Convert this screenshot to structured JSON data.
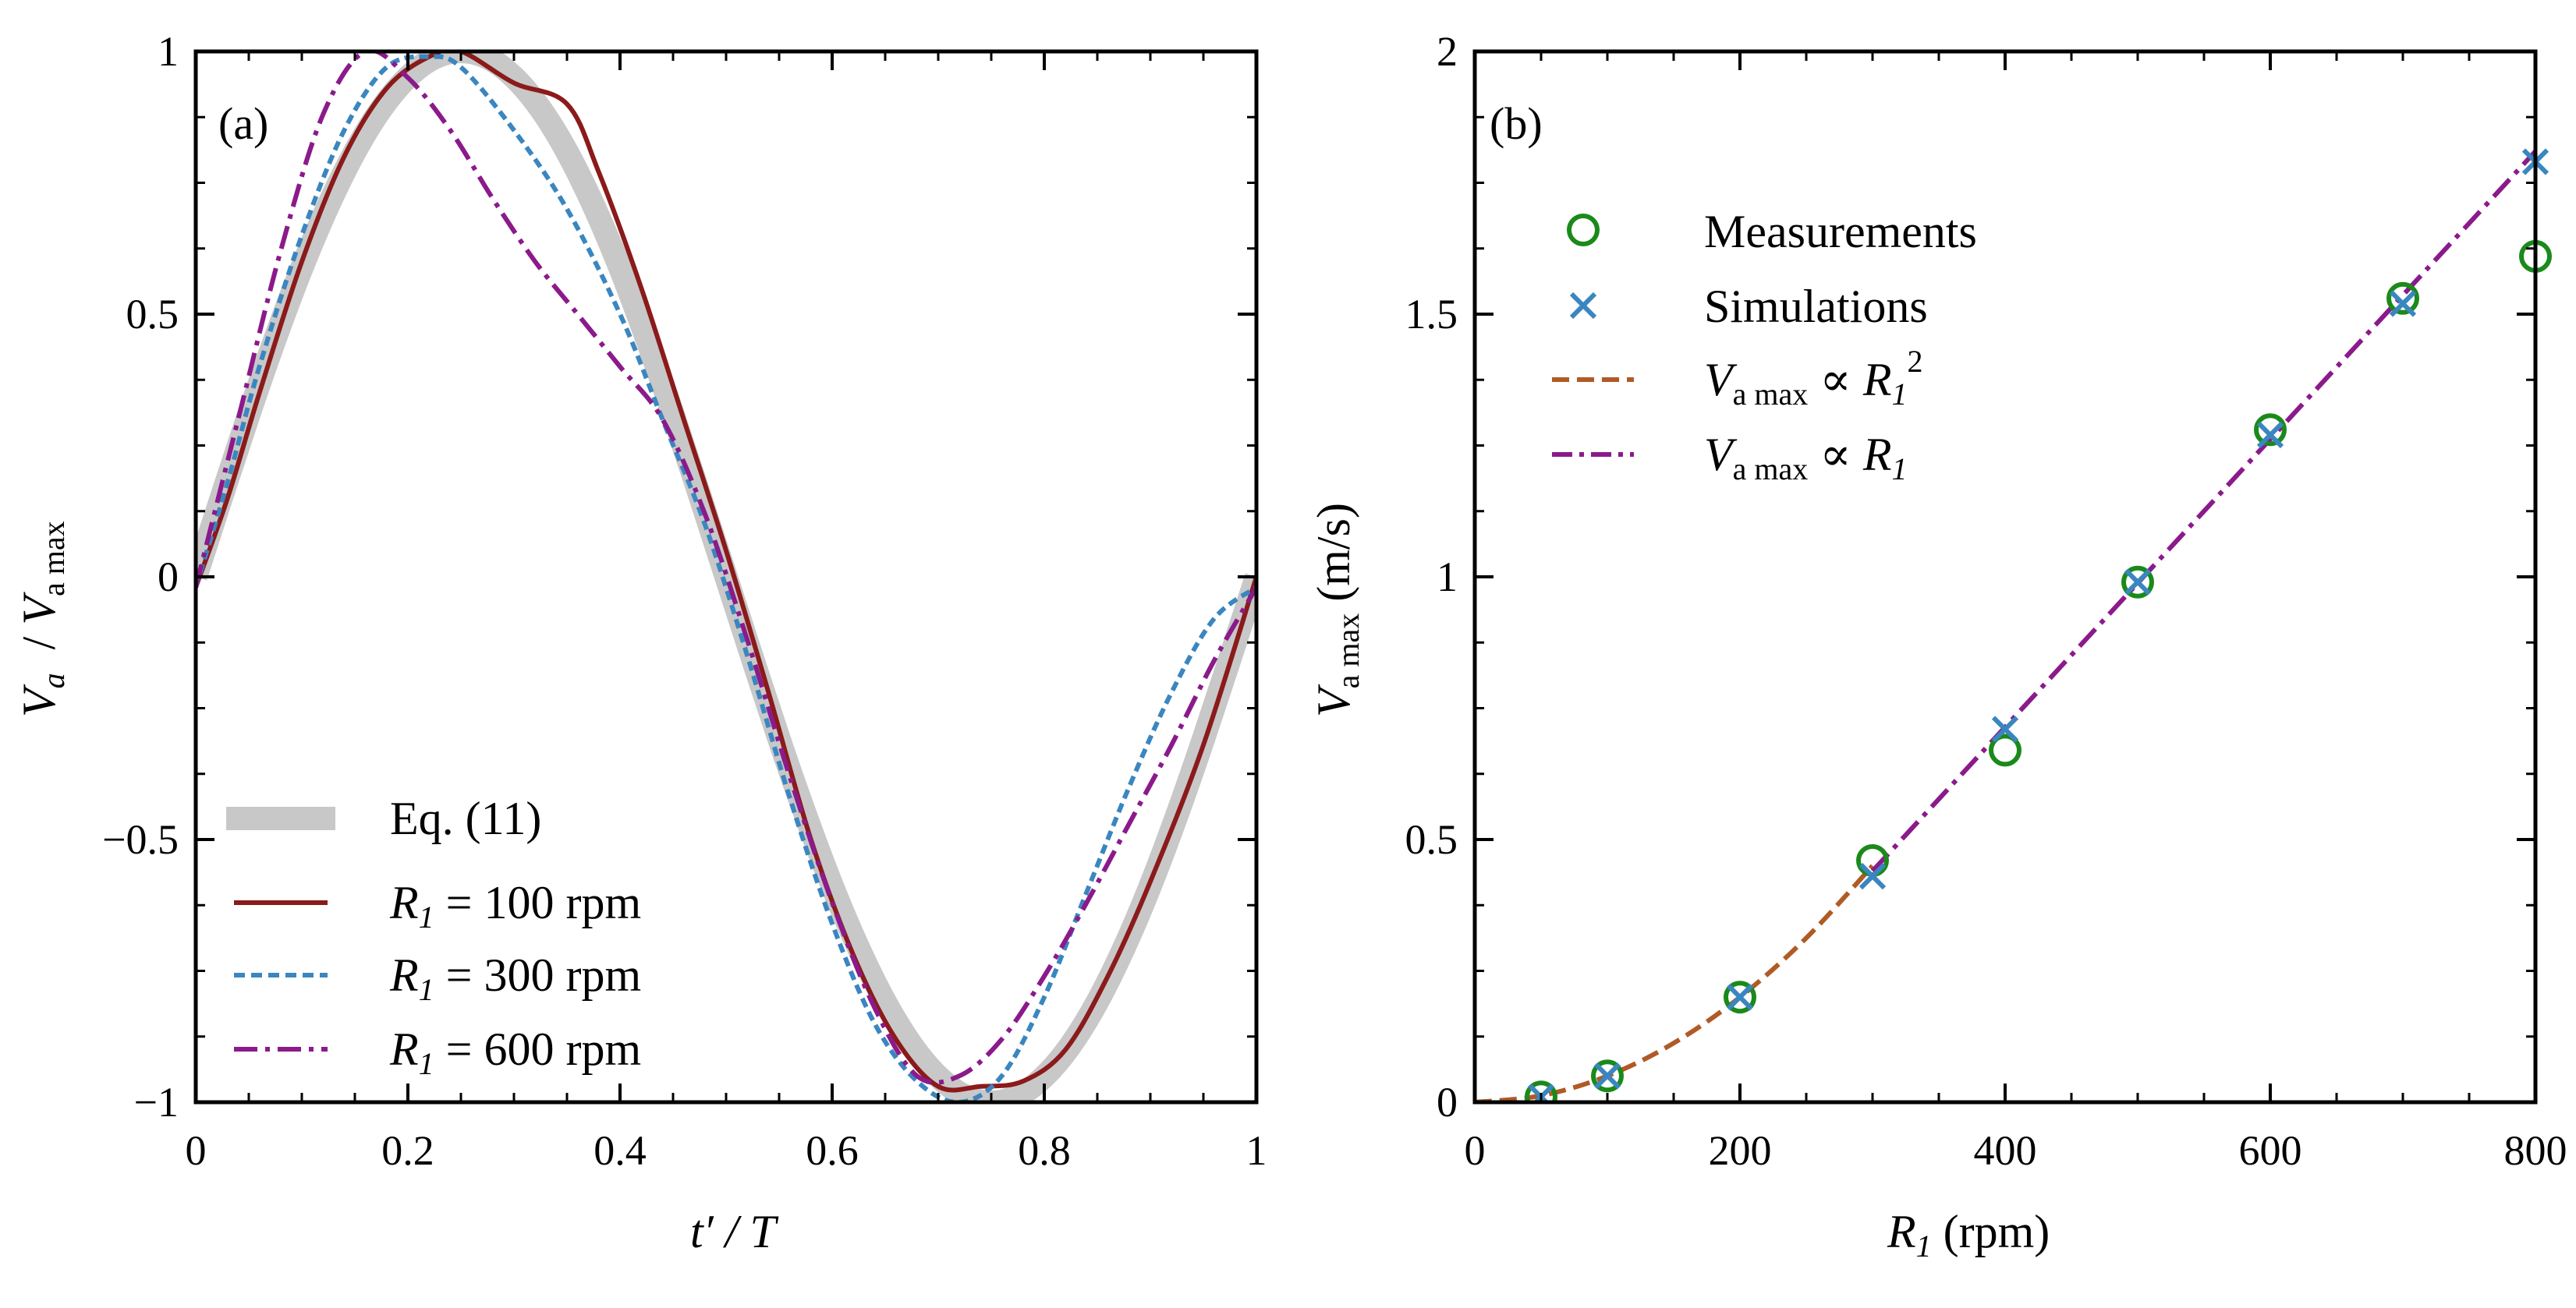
{
  "chart_data": [
    {
      "panel_label": "(a)",
      "type": "line",
      "xlabel": {
        "main": "t′",
        "rest": " / T"
      },
      "ylabel": {
        "v": "V",
        "a": "a",
        "slash": "/ ",
        "v2": "V",
        "sub2": "a max"
      },
      "xlim": [
        0,
        1
      ],
      "ylim": [
        -1,
        1
      ],
      "xticks": [
        "0",
        "0.2",
        "0.4",
        "0.6",
        "0.8",
        "1"
      ],
      "xtick_values": [
        0,
        0.2,
        0.4,
        0.6,
        0.8,
        1
      ],
      "yticks": [
        "−1",
        "−0.5",
        "0",
        "0.5",
        "1"
      ],
      "ytick_values": [
        -1,
        -0.5,
        0,
        0.5,
        1
      ],
      "series": [
        {
          "name": "Eq. (11)",
          "legend": {
            "pre": "",
            "var": "",
            "post": "Eq. (11)"
          },
          "color": "#c8c8c8",
          "style": "thick",
          "x": [
            0,
            0.025,
            0.05,
            0.075,
            0.1,
            0.125,
            0.15,
            0.175,
            0.2,
            0.225,
            0.25,
            0.275,
            0.3,
            0.325,
            0.35,
            0.375,
            0.4,
            0.425,
            0.45,
            0.475,
            0.5,
            0.525,
            0.55,
            0.575,
            0.6,
            0.625,
            0.65,
            0.675,
            0.7,
            0.725,
            0.75,
            0.775,
            0.8,
            0.825,
            0.85,
            0.875,
            0.9,
            0.925,
            0.95,
            0.975,
            1
          ],
          "y": [
            0,
            0.156,
            0.309,
            0.454,
            0.588,
            0.707,
            0.809,
            0.891,
            0.951,
            0.988,
            1.0,
            0.988,
            0.951,
            0.891,
            0.809,
            0.707,
            0.588,
            0.454,
            0.309,
            0.156,
            0,
            -0.156,
            -0.309,
            -0.454,
            -0.588,
            -0.707,
            -0.809,
            -0.891,
            -0.951,
            -0.988,
            -1.0,
            -0.988,
            -0.951,
            -0.891,
            -0.809,
            -0.707,
            -0.588,
            -0.454,
            -0.309,
            -0.156,
            0
          ]
        },
        {
          "name": "R1 = 100 rpm",
          "legend": {
            "pre": "",
            "var": "R",
            "sub": "1",
            "post": " = 100 rpm"
          },
          "color": "#8b1a1a",
          "style": "solid",
          "x": [
            0,
            0.03,
            0.06,
            0.1,
            0.14,
            0.18,
            0.22,
            0.25,
            0.3,
            0.35,
            0.38,
            0.42,
            0.46,
            0.5,
            0.54,
            0.58,
            0.62,
            0.66,
            0.7,
            0.74,
            0.78,
            0.82,
            0.86,
            0.9,
            0.95,
            1
          ],
          "y": [
            -0.02,
            0.15,
            0.35,
            0.6,
            0.8,
            0.93,
            0.99,
            1.0,
            0.94,
            0.9,
            0.77,
            0.55,
            0.3,
            0.05,
            -0.22,
            -0.5,
            -0.72,
            -0.88,
            -0.97,
            -0.97,
            -0.96,
            -0.9,
            -0.76,
            -0.58,
            -0.32,
            0
          ]
        },
        {
          "name": "R1 = 300 rpm",
          "legend": {
            "pre": "",
            "var": "R",
            "sub": "1",
            "post": " = 300 rpm"
          },
          "color": "#3a86c0",
          "style": "dotted",
          "x": [
            0,
            0.03,
            0.06,
            0.1,
            0.14,
            0.18,
            0.22,
            0.25,
            0.3,
            0.35,
            0.4,
            0.44,
            0.48,
            0.52,
            0.56,
            0.6,
            0.64,
            0.68,
            0.72,
            0.76,
            0.8,
            0.84,
            0.88,
            0.92,
            0.96,
            1
          ],
          "y": [
            -0.02,
            0.18,
            0.4,
            0.65,
            0.85,
            0.97,
            0.99,
            0.97,
            0.85,
            0.7,
            0.5,
            0.3,
            0.1,
            -0.15,
            -0.42,
            -0.66,
            -0.85,
            -0.96,
            -1.0,
            -0.95,
            -0.8,
            -0.6,
            -0.4,
            -0.22,
            -0.08,
            -0.02
          ]
        },
        {
          "name": "R1 = 600 rpm",
          "legend": {
            "pre": "",
            "var": "R",
            "sub": "1",
            "post": " = 600 rpm"
          },
          "color": "#8b1a8b",
          "style": "dashdot",
          "x": [
            0,
            0.04,
            0.08,
            0.12,
            0.16,
            0.2,
            0.24,
            0.28,
            0.32,
            0.36,
            0.4,
            0.44,
            0.48,
            0.52,
            0.56,
            0.6,
            0.64,
            0.68,
            0.72,
            0.76,
            0.8,
            0.84,
            0.88,
            0.92,
            0.96,
            1
          ],
          "y": [
            -0.02,
            0.3,
            0.62,
            0.88,
            1.0,
            0.95,
            0.85,
            0.72,
            0.6,
            0.5,
            0.4,
            0.3,
            0.12,
            -0.12,
            -0.38,
            -0.62,
            -0.82,
            -0.95,
            -0.95,
            -0.88,
            -0.76,
            -0.62,
            -0.47,
            -0.32,
            -0.16,
            -0.02
          ]
        }
      ]
    },
    {
      "panel_label": "(b)",
      "type": "scatter",
      "xlabel": {
        "var": "R",
        "sub": "1",
        "rest": " (rpm)"
      },
      "ylabel": {
        "v": "V",
        "sub": "a max",
        "rest": " (m/s)"
      },
      "xlim": [
        0,
        800
      ],
      "ylim": [
        0,
        2
      ],
      "xticks": [
        "0",
        "200",
        "400",
        "600",
        "800"
      ],
      "xtick_values": [
        0,
        200,
        400,
        600,
        800
      ],
      "yticks": [
        "0",
        "0.5",
        "1",
        "1.5",
        "2"
      ],
      "ytick_values": [
        0,
        0.5,
        1,
        1.5,
        2
      ],
      "series": [
        {
          "name": "Measurements",
          "legend": {
            "text": "Measurements"
          },
          "marker": "circle",
          "color": "#1a8a1a",
          "x": [
            50,
            100,
            200,
            300,
            400,
            500,
            600,
            700,
            800
          ],
          "y": [
            0.01,
            0.05,
            0.2,
            0.46,
            0.67,
            0.99,
            1.28,
            1.53,
            1.61
          ]
        },
        {
          "name": "Simulations",
          "legend": {
            "text": "Simulations"
          },
          "marker": "x",
          "color": "#3a86c0",
          "x": [
            50,
            100,
            200,
            300,
            400,
            500,
            600,
            700,
            800
          ],
          "y": [
            0.01,
            0.05,
            0.2,
            0.43,
            0.71,
            0.99,
            1.27,
            1.52,
            1.79
          ]
        },
        {
          "name": "Va max ∝ R1^2",
          "legend": {
            "v": "V",
            "sub": "a max",
            "mid": " ∝ ",
            "var": "R",
            "sub2": "1",
            "sup": "2"
          },
          "line": "dashed",
          "color": "#b05a25",
          "x": [
            0,
            50,
            100,
            150,
            200,
            250,
            300
          ],
          "y": [
            0,
            0.0125,
            0.05,
            0.1125,
            0.2,
            0.3125,
            0.45
          ]
        },
        {
          "name": "Va max ∝ R1",
          "legend": {
            "v": "V",
            "sub": "a max",
            "mid": "  ∝ ",
            "var": "R",
            "sub2": "1",
            "sup": ""
          },
          "line": "dashdot",
          "color": "#8b1a8b",
          "x": [
            300,
            800
          ],
          "y": [
            0.44,
            1.81
          ]
        }
      ]
    }
  ]
}
